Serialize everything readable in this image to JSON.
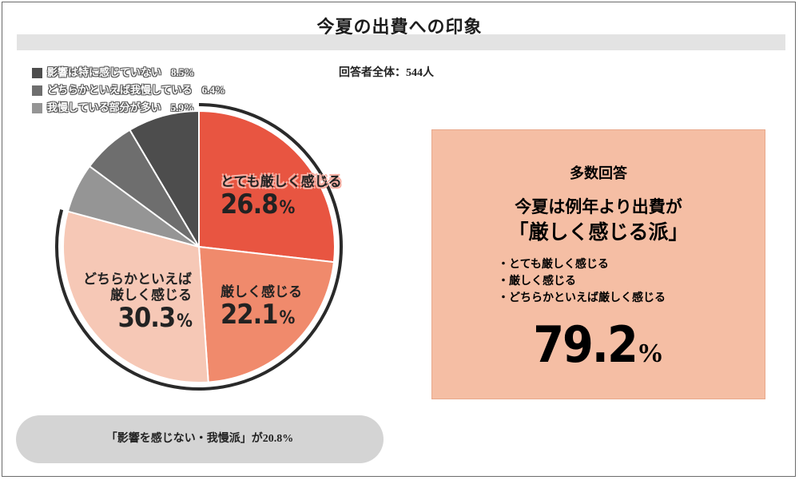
{
  "title": "今夏の出費への印象",
  "total_label": "回答者全体：544人",
  "chart_data": {
    "type": "pie",
    "title": "今夏の出費への印象",
    "start_angle_deg": 0,
    "direction": "clockwise",
    "slices": [
      {
        "label": "とても厳しく感じる",
        "value": 26.8,
        "value_text": "26.8",
        "color": "#e85541"
      },
      {
        "label": "厳しく感じる",
        "value": 22.1,
        "value_text": "22.1",
        "color": "#f08a6c"
      },
      {
        "label": "どちらかといえば 厳しく感じる",
        "line1": "どちらかといえば",
        "line2": "厳しく感じる",
        "value": 30.3,
        "value_text": "30.3",
        "color": "#f6c8b6"
      },
      {
        "label": "我慢している部分が多い",
        "value": 5.9,
        "value_text": "5.9%",
        "color": "#959595"
      },
      {
        "label": "どちらかといえば我慢している",
        "value": 6.4,
        "value_text": "6.4%",
        "color": "#6e6e6e"
      },
      {
        "label": "影響は特に感じていない",
        "value": 8.5,
        "value_text": "8.5%",
        "color": "#4d4d4d"
      }
    ],
    "legend": [
      {
        "label": "影響は特に感じていない",
        "value_text": "8.5%",
        "color": "#4d4d4d"
      },
      {
        "label": "どちらかといえば我慢している",
        "value_text": "6.4%",
        "color": "#6e6e6e"
      },
      {
        "label": "我慢している部分が多い",
        "value_text": "5.9%",
        "color": "#959595"
      }
    ],
    "legend_position": "top-left",
    "percent_unit": "%"
  },
  "summary": {
    "title": "多数回答",
    "headline1": "今夏は例年より出費が",
    "headline2": "「厳しく感じる派」",
    "items": [
      "とても厳しく感じる",
      "厳しく感じる",
      "どちらかといえば厳しく感じる"
    ],
    "total_value": "79.2",
    "total_unit": "%"
  },
  "footer_note": "「影響を感じない・我慢派」が20.8%"
}
